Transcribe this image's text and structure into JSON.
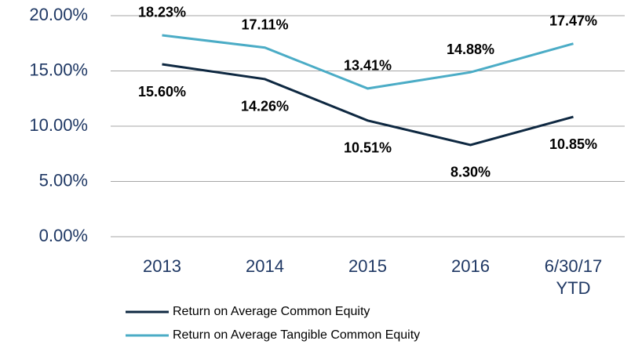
{
  "chart_data": {
    "type": "line",
    "categories": [
      "2013",
      "2014",
      "2015",
      "2016",
      "6/30/17 YTD"
    ],
    "series": [
      {
        "name": "Return on Average Common Equity",
        "color": "#0e2841",
        "values": [
          15.6,
          14.26,
          10.51,
          8.3,
          10.85
        ],
        "value_labels": [
          "15.60%",
          "14.26%",
          "10.51%",
          "8.30%",
          "10.85%"
        ]
      },
      {
        "name": "Return on Average Tangible Common Equity",
        "color": "#4bacc6",
        "values": [
          18.23,
          17.11,
          13.41,
          14.88,
          17.47
        ],
        "value_labels": [
          "18.23%",
          "17.11%",
          "13.41%",
          "14.88%",
          "17.47%"
        ]
      }
    ],
    "ylim": [
      0,
      20
    ],
    "yticks": [
      {
        "value": 0,
        "label": "0.00%"
      },
      {
        "value": 5,
        "label": "5.00%"
      },
      {
        "value": 10,
        "label": "10.00%"
      },
      {
        "value": 15,
        "label": "15.00%"
      },
      {
        "value": 20,
        "label": "20.00%"
      }
    ],
    "grid": true,
    "legend": "bottom"
  }
}
